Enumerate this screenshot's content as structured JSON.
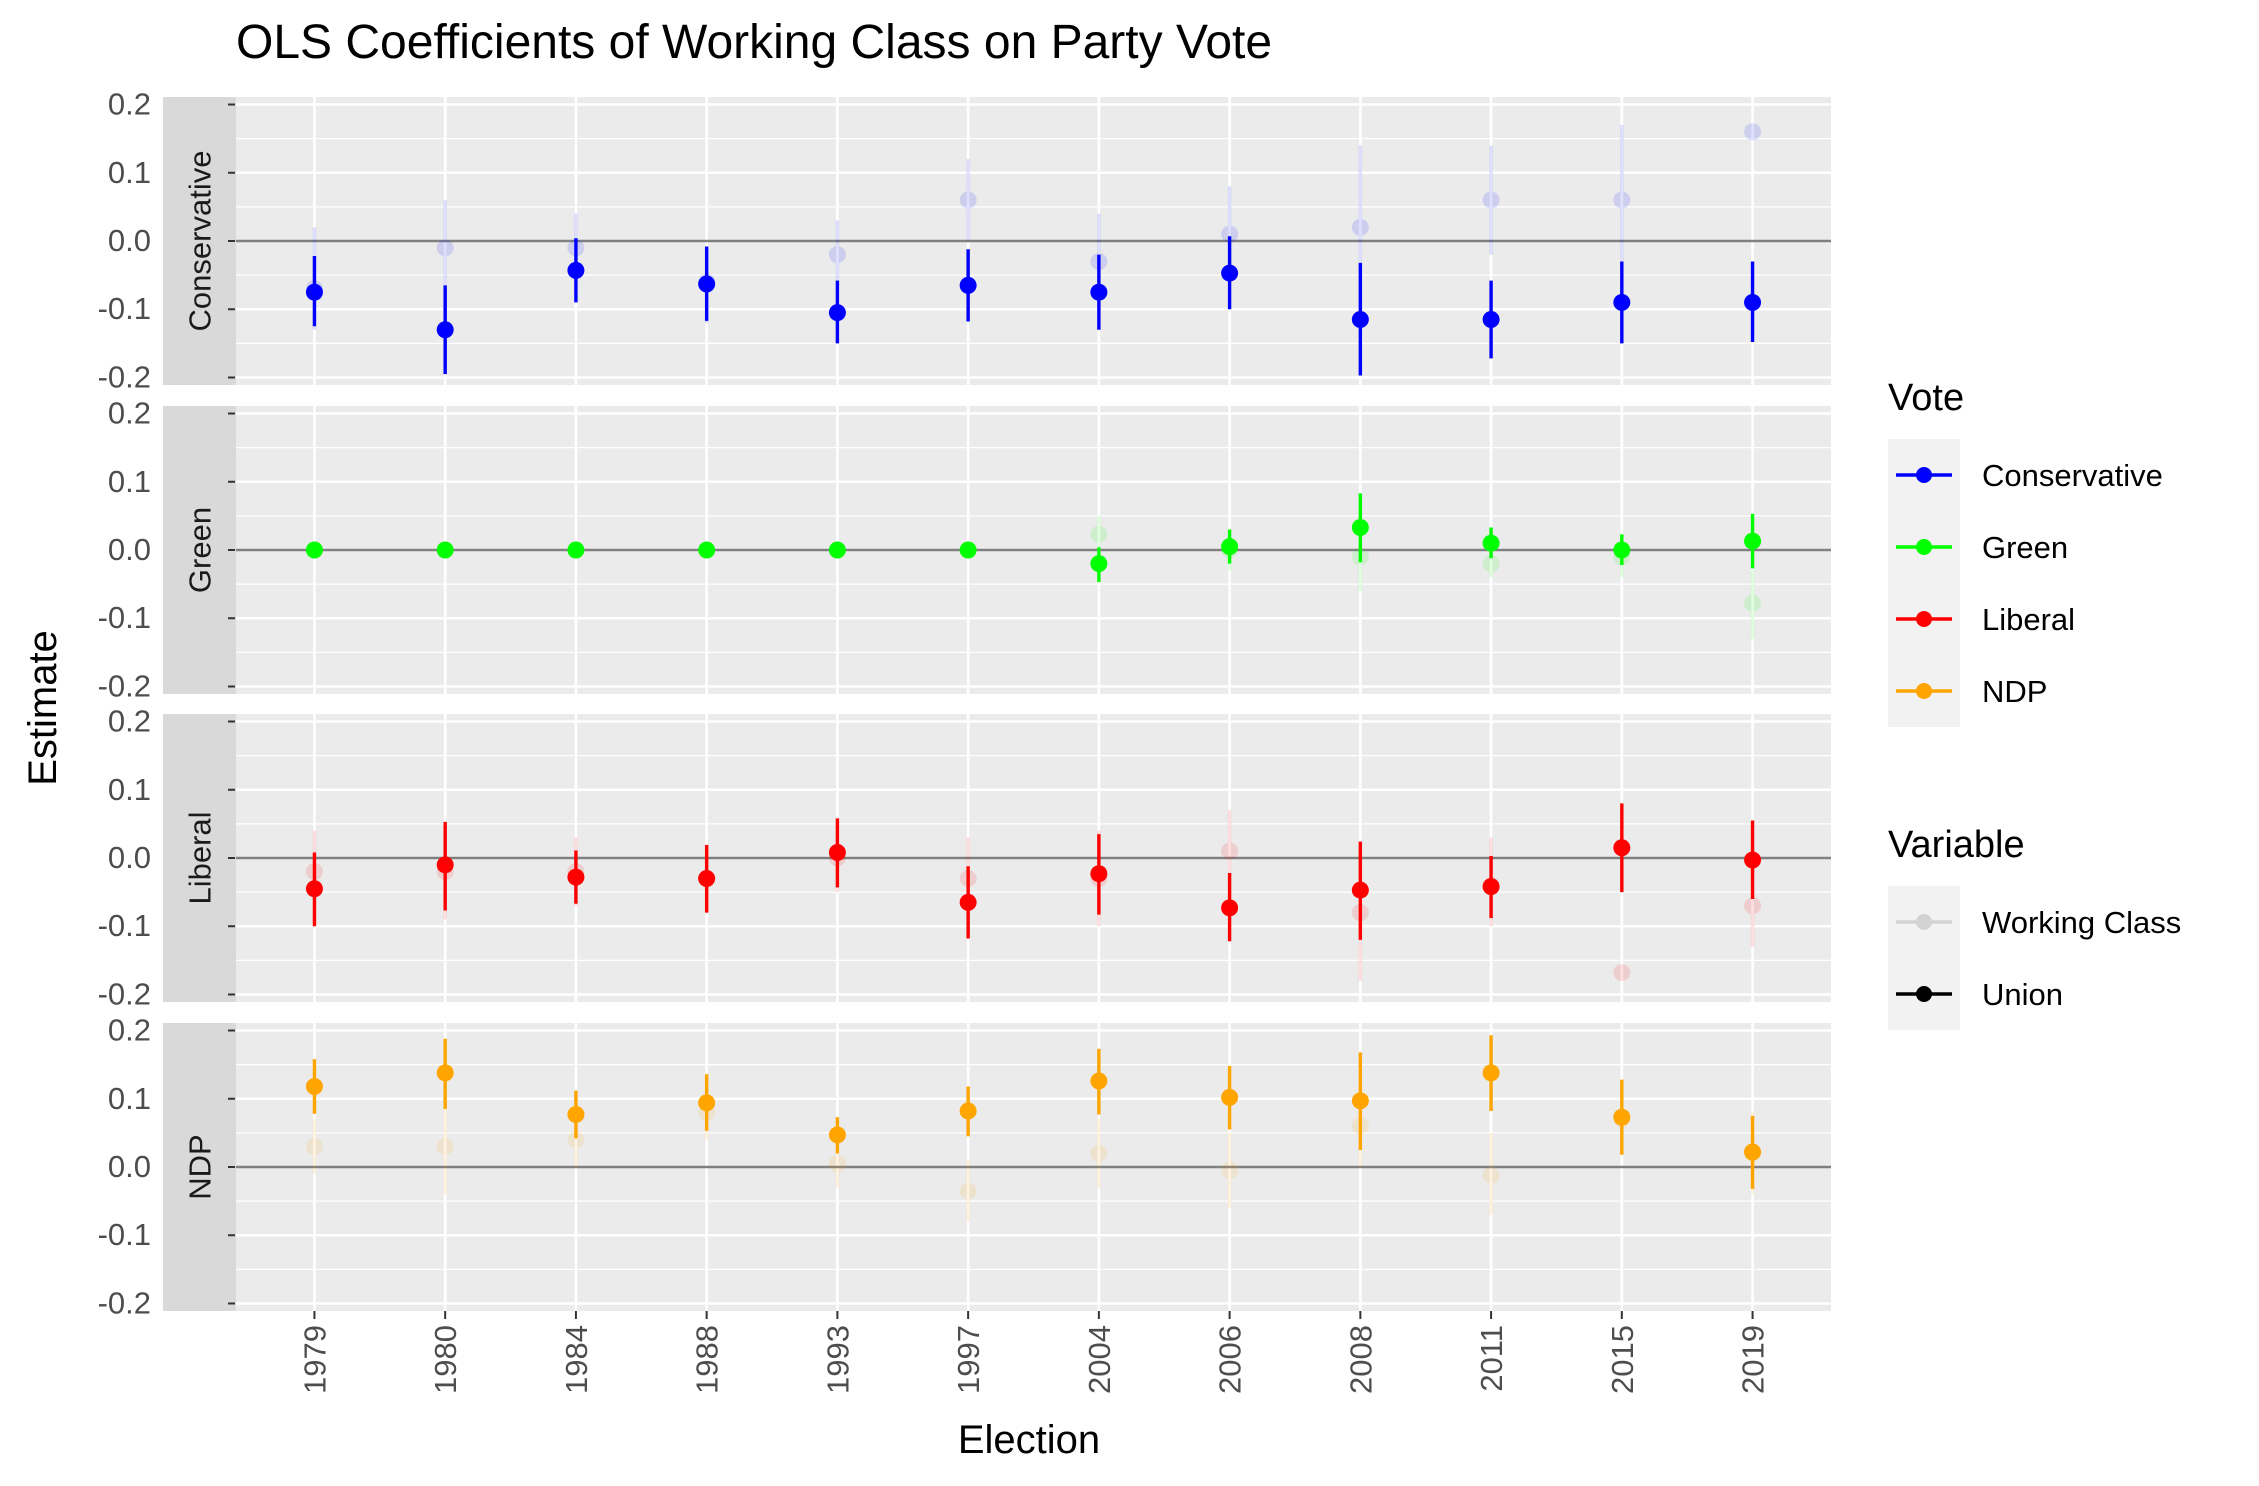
{
  "chart_data": {
    "type": "scatter",
    "title": "OLS Coefficients of Working Class on Party Vote",
    "xlabel": "Election",
    "ylabel": "Estimate",
    "categories": [
      "1979",
      "1980",
      "1984",
      "1988",
      "1993",
      "1997",
      "2004",
      "2006",
      "2008",
      "2011",
      "2015",
      "2019"
    ],
    "ylim": [
      -0.2,
      0.2
    ],
    "yticks": [
      "-0.2",
      "-0.1",
      "0.0",
      "0.1",
      "0.2"
    ],
    "facets": [
      {
        "label": "Conservative",
        "color": "#0000FF",
        "series": [
          {
            "name": "Working Class",
            "alpha": 0.12,
            "estimate": [
              -0.07,
              -0.01,
              -0.01,
              -0.06,
              -0.02,
              0.06,
              -0.03,
              0.01,
              0.02,
              0.06,
              0.06,
              0.16
            ],
            "lower": [
              -0.13,
              -0.08,
              -0.06,
              -0.12,
              -0.07,
              0.0,
              -0.09,
              -0.05,
              -0.09,
              -0.02,
              -0.03,
              0.16
            ],
            "upper": [
              0.02,
              0.06,
              0.04,
              -0.01,
              0.03,
              0.12,
              0.04,
              0.08,
              0.14,
              0.14,
              0.17,
              0.16
            ]
          },
          {
            "name": "Union",
            "alpha": 1,
            "estimate": [
              -0.075,
              -0.13,
              -0.043,
              -0.063,
              -0.105,
              -0.065,
              -0.075,
              -0.047,
              -0.115,
              -0.115,
              -0.09,
              -0.09
            ],
            "lower": [
              -0.125,
              -0.195,
              -0.09,
              -0.117,
              -0.15,
              -0.118,
              -0.13,
              -0.1,
              -0.197,
              -0.172,
              -0.15,
              -0.148
            ],
            "upper": [
              -0.022,
              -0.065,
              0.004,
              -0.008,
              -0.058,
              -0.012,
              -0.02,
              0.007,
              -0.032,
              -0.058,
              -0.03,
              -0.03
            ]
          }
        ]
      },
      {
        "label": "Green",
        "color": "#00FF00",
        "series": [
          {
            "name": "Working Class",
            "alpha": 0.12,
            "estimate": [
              0.0,
              0.0,
              0.0,
              0.0,
              0.0,
              0.0,
              0.023,
              0.0,
              -0.01,
              -0.02,
              -0.01,
              -0.078
            ],
            "lower": [
              0.0,
              0.0,
              0.0,
              0.0,
              0.0,
              0.0,
              -0.01,
              -0.03,
              -0.06,
              -0.04,
              -0.04,
              -0.13
            ],
            "upper": [
              0.0,
              0.0,
              0.0,
              0.0,
              0.0,
              0.0,
              0.05,
              0.03,
              0.04,
              0.01,
              0.02,
              -0.03
            ]
          },
          {
            "name": "Union",
            "alpha": 1,
            "estimate": [
              0.0,
              0.0,
              0.0,
              0.0,
              0.0,
              0.0,
              -0.02,
              0.005,
              0.033,
              0.01,
              0.0,
              0.013
            ],
            "lower": [
              0.0,
              0.0,
              0.0,
              0.0,
              0.0,
              0.0,
              -0.047,
              -0.02,
              -0.018,
              -0.012,
              -0.022,
              -0.027
            ],
            "upper": [
              0.0,
              0.0,
              0.0,
              0.0,
              0.0,
              0.0,
              0.004,
              0.03,
              0.083,
              0.033,
              0.023,
              0.053
            ]
          }
        ]
      },
      {
        "label": "Liberal",
        "color": "#FF0000",
        "series": [
          {
            "name": "Working Class",
            "alpha": 0.12,
            "estimate": [
              -0.02,
              -0.02,
              -0.02,
              -0.03,
              0.0,
              -0.03,
              -0.03,
              0.01,
              -0.08,
              -0.04,
              -0.168,
              -0.07
            ],
            "lower": [
              -0.08,
              -0.09,
              -0.07,
              -0.08,
              -0.05,
              -0.09,
              -0.1,
              -0.05,
              -0.18,
              -0.1,
              -0.168,
              -0.13
            ],
            "upper": [
              0.04,
              0.04,
              0.03,
              0.02,
              0.05,
              0.03,
              0.04,
              0.07,
              0.02,
              0.03,
              -0.168,
              -0.01
            ]
          },
          {
            "name": "Union",
            "alpha": 1,
            "estimate": [
              -0.045,
              -0.01,
              -0.028,
              -0.03,
              0.008,
              -0.065,
              -0.023,
              -0.073,
              -0.047,
              -0.042,
              0.015,
              -0.003
            ],
            "lower": [
              -0.1,
              -0.077,
              -0.067,
              -0.08,
              -0.043,
              -0.118,
              -0.083,
              -0.122,
              -0.12,
              -0.088,
              -0.05,
              -0.06
            ],
            "upper": [
              0.008,
              0.053,
              0.011,
              0.019,
              0.058,
              -0.012,
              0.035,
              -0.022,
              0.024,
              0.003,
              0.08,
              0.055
            ]
          }
        ]
      },
      {
        "label": "NDP",
        "color": "#FFA500",
        "series": [
          {
            "name": "Working Class",
            "alpha": 0.12,
            "estimate": [
              0.03,
              0.03,
              0.04,
              0.08,
              0.005,
              -0.035,
              0.02,
              -0.005,
              0.06,
              -0.012,
              0.07,
              0.02
            ],
            "lower": [
              -0.01,
              -0.04,
              0.0,
              0.04,
              -0.03,
              -0.08,
              -0.03,
              -0.06,
              0.0,
              -0.07,
              0.02,
              -0.04
            ],
            "upper": [
              0.07,
              0.1,
              0.08,
              0.12,
              0.04,
              0.01,
              0.07,
              0.05,
              0.12,
              0.05,
              0.12,
              0.08
            ]
          },
          {
            "name": "Union",
            "alpha": 1,
            "estimate": [
              0.118,
              0.138,
              0.077,
              0.094,
              0.047,
              0.082,
              0.126,
              0.102,
              0.097,
              0.138,
              0.073,
              0.022
            ],
            "lower": [
              0.078,
              0.085,
              0.042,
              0.053,
              0.02,
              0.045,
              0.077,
              0.055,
              0.025,
              0.082,
              0.018,
              -0.032
            ],
            "upper": [
              0.158,
              0.188,
              0.112,
              0.136,
              0.073,
              0.118,
              0.173,
              0.148,
              0.168,
              0.193,
              0.128,
              0.075
            ]
          }
        ]
      }
    ],
    "legend": {
      "position": "right",
      "vote": {
        "title": "Vote",
        "entries": [
          {
            "label": "Conservative",
            "color": "#0000FF"
          },
          {
            "label": "Green",
            "color": "#00FF00"
          },
          {
            "label": "Liberal",
            "color": "#FF0000"
          },
          {
            "label": "NDP",
            "color": "#FFA500"
          }
        ]
      },
      "variable": {
        "title": "Variable",
        "entries": [
          {
            "label": "Working Class",
            "color": "#000000",
            "alpha": 0.12
          },
          {
            "label": "Union",
            "color": "#000000",
            "alpha": 1
          }
        ]
      }
    },
    "grid": true
  }
}
